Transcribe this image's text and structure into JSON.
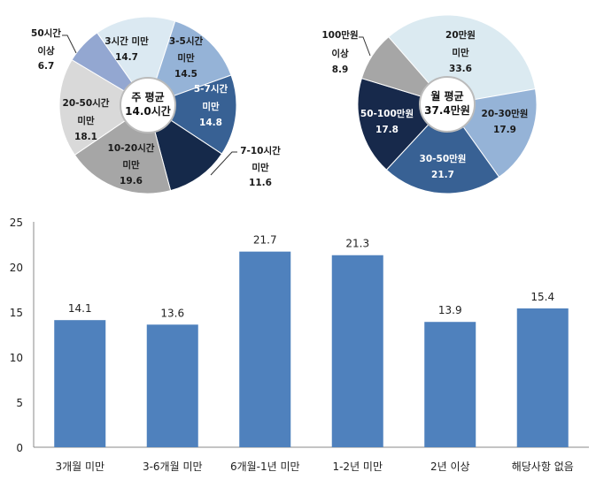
{
  "chart_data": [
    {
      "type": "pie",
      "style": "donut",
      "center_label": [
        "주 평균",
        "14.0시간"
      ],
      "slices": [
        {
          "name": "3시간 미만",
          "value": 14.7,
          "color": "#dbe9f2"
        },
        {
          "name": "3-5시간 미만",
          "value": 14.5,
          "color": "#95b3d7"
        },
        {
          "name": "5-7시간 미만",
          "value": 14.8,
          "color": "#386194"
        },
        {
          "name": "7-10시간 미만",
          "value": 11.6,
          "color": "#15294a"
        },
        {
          "name": "10-20시간 미만",
          "value": 19.6,
          "color": "#a6a6a6"
        },
        {
          "name": "20-50시간 미만",
          "value": 18.1,
          "color": "#d9d9d9"
        },
        {
          "name": "50시간 이상",
          "value": 6.7,
          "color": "#93a7d1"
        }
      ]
    },
    {
      "type": "pie",
      "style": "donut",
      "center_label": [
        "월 평균",
        "37.4만원"
      ],
      "slices": [
        {
          "name": "20만원 미만",
          "value": 33.6,
          "color": "#dbeaf1"
        },
        {
          "name": "20-30만원",
          "value": 17.9,
          "color": "#95b3d7"
        },
        {
          "name": "30-50만원",
          "value": 21.7,
          "color": "#386194"
        },
        {
          "name": "50-100만원",
          "value": 17.8,
          "color": "#17294b"
        },
        {
          "name": "100만원 이상",
          "value": 8.9,
          "color": "#a6a6a6"
        }
      ]
    },
    {
      "type": "bar",
      "categories": [
        "3개월 미만",
        "3-6개월 미만",
        "6개월-1년 미만",
        "1-2년 미만",
        "2년 이상",
        "해당사항 없음"
      ],
      "values": [
        14.1,
        13.6,
        21.7,
        21.3,
        13.9,
        15.4
      ],
      "ylim": [
        0,
        25
      ],
      "yticks": [
        0,
        5,
        10,
        15,
        20,
        25
      ],
      "grid": false,
      "bar_color": "#4f81bd"
    }
  ]
}
